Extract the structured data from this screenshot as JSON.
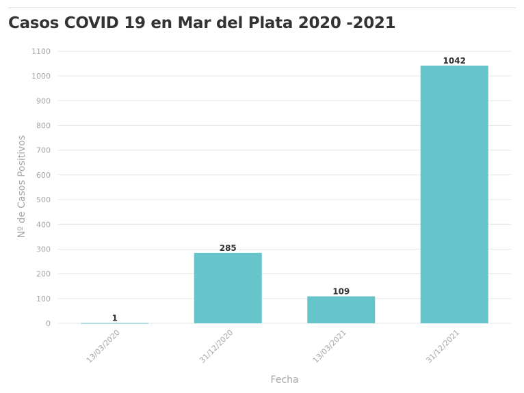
{
  "title": "Casos COVID 19 en Mar del Plata 2020 -2021",
  "colors": {
    "bar": "#67c4cb",
    "grid": "#e6e6e6",
    "text": "#333333",
    "axis_text": "#a6a6a6"
  },
  "chart_data": {
    "type": "bar",
    "title": "Casos COVID 19 en Mar del Plata 2020 -2021",
    "xlabel": "Fecha",
    "ylabel": "Nº de Casos Positivos",
    "categories": [
      "13/03/2020",
      "31/12/2020",
      "13/03/2021",
      "31/12/2021"
    ],
    "values": [
      1,
      285,
      109,
      1042
    ],
    "data_labels": [
      "1",
      "285",
      "109",
      "1042"
    ],
    "ylim": [
      0,
      1100
    ],
    "yticks": [
      0,
      100,
      200,
      300,
      400,
      500,
      600,
      700,
      800,
      900,
      1000,
      1100
    ],
    "grid": true,
    "legend": "none"
  }
}
